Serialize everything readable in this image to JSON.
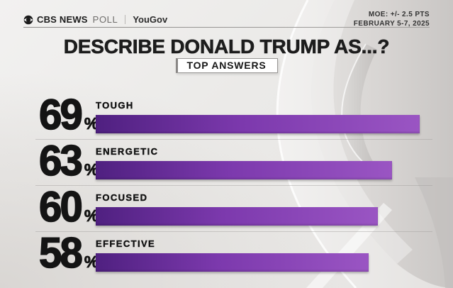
{
  "header": {
    "brand_cbs": "CBS NEWS",
    "brand_poll": "POLL",
    "brand_partner": "YouGov",
    "moe_line1": "MOE: +/- 2.5 PTS",
    "moe_line2": "FEBRUARY 5-7, 2025"
  },
  "title": "DESCRIBE DONALD TRUMP AS...?",
  "badge": "TOP ANSWERS",
  "chart_data": {
    "type": "bar",
    "orientation": "horizontal",
    "title": "DESCRIBE DONALD TRUMP AS...?",
    "subtitle": "TOP ANSWERS",
    "categories": [
      "TOUGH",
      "ENERGETIC",
      "FOCUSED",
      "EFFECTIVE"
    ],
    "values": [
      69,
      63,
      60,
      58
    ],
    "unit": "%",
    "xlim": [
      0,
      100
    ],
    "grid": false,
    "value_label_position": "left-of-bar"
  },
  "colors": {
    "bar_dark": "#4f2080",
    "bar_mid": "#7c39ad",
    "bar_light": "#9a55c3",
    "text": "#161616",
    "background": "#edecea"
  }
}
